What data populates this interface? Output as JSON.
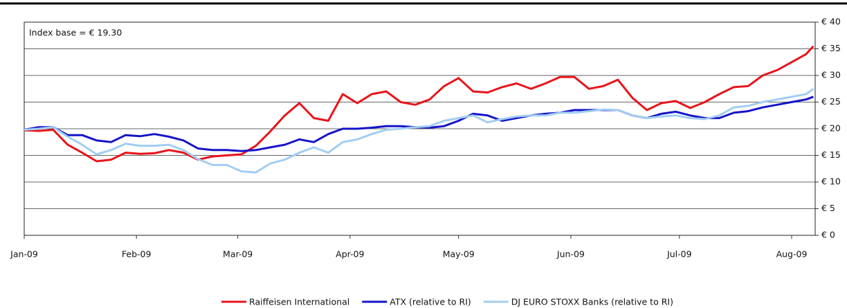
{
  "chart_data": {
    "type": "line",
    "annotation": "Index base = € 19.30",
    "x": [
      0,
      4,
      8,
      12,
      16,
      20,
      24,
      28,
      32,
      36,
      40,
      44,
      48,
      52,
      56,
      60,
      64,
      68,
      72,
      76,
      80,
      84,
      88,
      92,
      96,
      100,
      104,
      108,
      112,
      116,
      120,
      124,
      128,
      132,
      136,
      140,
      144,
      148,
      152,
      156,
      160,
      164,
      168,
      172,
      176,
      180,
      184,
      188,
      192,
      196,
      200,
      204,
      208,
      212,
      216,
      218
    ],
    "xlim": [
      0,
      218.5
    ],
    "xticks": [
      {
        "value": 0,
        "label": "Jan-09"
      },
      {
        "value": 31,
        "label": "Feb-09"
      },
      {
        "value": 59,
        "label": "Mar-09"
      },
      {
        "value": 90,
        "label": "Apr-09"
      },
      {
        "value": 120,
        "label": "May-09"
      },
      {
        "value": 151,
        "label": "Jun-09"
      },
      {
        "value": 181,
        "label": "Jul-09"
      },
      {
        "value": 212,
        "label": "Aug-09"
      }
    ],
    "ylim": [
      0,
      40
    ],
    "yticks": [
      {
        "value": 0,
        "label": "€ 0"
      },
      {
        "value": 5,
        "label": "€ 5"
      },
      {
        "value": 10,
        "label": "€ 10"
      },
      {
        "value": 15,
        "label": "€ 15"
      },
      {
        "value": 20,
        "label": "€ 20"
      },
      {
        "value": 25,
        "label": "€ 25"
      },
      {
        "value": 30,
        "label": "€ 30"
      },
      {
        "value": 35,
        "label": "€ 35"
      },
      {
        "value": 40,
        "label": "€ 40"
      }
    ],
    "grid": true,
    "legend": "bottom",
    "series": [
      {
        "name": "Raiffeisen International",
        "color": "#e8141b",
        "values": [
          19.7,
          19.6,
          19.8,
          17,
          15.5,
          13.9,
          14.2,
          15.5,
          15.3,
          15.4,
          16,
          15.5,
          14.2,
          14.8,
          15,
          15.2,
          16.8,
          19.5,
          22.5,
          24.8,
          22,
          21.5,
          26.5,
          24.8,
          26.5,
          27,
          25,
          24.5,
          25.5,
          28,
          29.5,
          27,
          26.8,
          27.8,
          28.5,
          27.5,
          28.5,
          29.7,
          29.7,
          27.5,
          28,
          29.2,
          25.8,
          23.5,
          24.8,
          25.2,
          23.9,
          25,
          26.5,
          27.8,
          28,
          30,
          31,
          32.5,
          34,
          35.5
        ]
      },
      {
        "name": "ATX (relative to RI)",
        "color": "#1414c8",
        "values": [
          19.8,
          20.3,
          20.3,
          18.8,
          18.8,
          17.8,
          17.5,
          18.8,
          18.6,
          19,
          18.5,
          17.8,
          16.3,
          16,
          16,
          15.8,
          16,
          16.5,
          17,
          18,
          17.5,
          19,
          20,
          20,
          20.2,
          20.5,
          20.5,
          20.3,
          20.2,
          20.5,
          21.5,
          22.8,
          22.5,
          21.5,
          22,
          22.5,
          22.8,
          23,
          23.5,
          23.5,
          23.5,
          23.5,
          22.5,
          22,
          22.8,
          23.2,
          22.5,
          22,
          22,
          23,
          23.3,
          24,
          24.5,
          25,
          25.5,
          26
        ]
      },
      {
        "name": "DJ EURO STOXX Banks (relative to RI)",
        "color": "#a2cdf2",
        "values": [
          19.8,
          20,
          20.3,
          18.5,
          17,
          15.2,
          16,
          17.2,
          16.8,
          16.8,
          17,
          16,
          14.3,
          13.2,
          13.2,
          12,
          11.8,
          13.5,
          14.2,
          15.5,
          16.5,
          15.5,
          17.5,
          18,
          19,
          19.8,
          20,
          20.3,
          20.5,
          21.5,
          22,
          22.5,
          21.2,
          21.8,
          22.3,
          22.5,
          22.5,
          23,
          23,
          23.3,
          23.6,
          23.5,
          22.5,
          22,
          22.3,
          22.5,
          22,
          21.8,
          22.5,
          24,
          24.3,
          25,
          25.5,
          26,
          26.5,
          27.5
        ]
      }
    ]
  }
}
